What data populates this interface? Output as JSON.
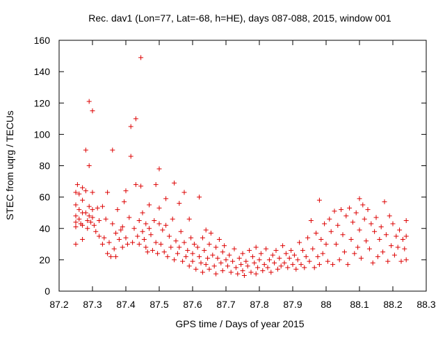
{
  "chart_data": {
    "type": "scatter",
    "title": "Rec. dav1 (Lon=77, Lat=-68, h=HE), days 087-088, 2015, window 001",
    "xlabel": "GPS time / Days of year 2015",
    "ylabel": "STEC from uqrg / TECUs",
    "xlim": [
      87.2,
      88.3
    ],
    "ylim": [
      0,
      160
    ],
    "xticks": [
      87.2,
      87.3,
      87.4,
      87.5,
      87.6,
      87.7,
      87.8,
      87.9,
      88,
      88.1,
      88.2,
      88.3
    ],
    "xtick_labels": [
      "87.2",
      "87.3",
      "87.4",
      "87.5",
      "87.6",
      "87.7",
      "87.8",
      "87.9",
      "88",
      "88.1",
      "88.2",
      "88.3"
    ],
    "yticks": [
      0,
      20,
      40,
      60,
      80,
      100,
      120,
      140,
      160
    ],
    "ytick_labels": [
      "0",
      "20",
      "40",
      "60",
      "80",
      "100",
      "120",
      "140",
      "160"
    ],
    "marker": "plus",
    "color": "#dd0000",
    "grid": false,
    "legend": "none",
    "points": [
      [
        87.25,
        63
      ],
      [
        87.25,
        55
      ],
      [
        87.25,
        48
      ],
      [
        87.25,
        44
      ],
      [
        87.25,
        41
      ],
      [
        87.25,
        30
      ],
      [
        87.255,
        68
      ],
      [
        87.26,
        62
      ],
      [
        87.26,
        52
      ],
      [
        87.26,
        46
      ],
      [
        87.265,
        43
      ],
      [
        87.27,
        66
      ],
      [
        87.27,
        58
      ],
      [
        87.27,
        50
      ],
      [
        87.27,
        42
      ],
      [
        87.27,
        33
      ],
      [
        87.28,
        90
      ],
      [
        87.28,
        64
      ],
      [
        87.28,
        50
      ],
      [
        87.285,
        45
      ],
      [
        87.285,
        40
      ],
      [
        87.29,
        121
      ],
      [
        87.29,
        80
      ],
      [
        87.29,
        54
      ],
      [
        87.29,
        48
      ],
      [
        87.295,
        44
      ],
      [
        87.3,
        115
      ],
      [
        87.3,
        63
      ],
      [
        87.3,
        52
      ],
      [
        87.3,
        47
      ],
      [
        87.305,
        42
      ],
      [
        87.31,
        38
      ],
      [
        87.315,
        53
      ],
      [
        87.32,
        45
      ],
      [
        87.32,
        35
      ],
      [
        87.33,
        54
      ],
      [
        87.33,
        30
      ],
      [
        87.335,
        34
      ],
      [
        87.34,
        46
      ],
      [
        87.345,
        63
      ],
      [
        87.345,
        24
      ],
      [
        87.35,
        31
      ],
      [
        87.355,
        22
      ],
      [
        87.36,
        90
      ],
      [
        87.36,
        43
      ],
      [
        87.365,
        27
      ],
      [
        87.37,
        37
      ],
      [
        87.37,
        22
      ],
      [
        87.375,
        52
      ],
      [
        87.38,
        33
      ],
      [
        87.385,
        39
      ],
      [
        87.39,
        41
      ],
      [
        87.39,
        28
      ],
      [
        87.395,
        57
      ],
      [
        87.4,
        64
      ],
      [
        87.4,
        34
      ],
      [
        87.405,
        30
      ],
      [
        87.41,
        47
      ],
      [
        87.415,
        105
      ],
      [
        87.415,
        86
      ],
      [
        87.42,
        31
      ],
      [
        87.425,
        40
      ],
      [
        87.43,
        110
      ],
      [
        87.43,
        68
      ],
      [
        87.435,
        35
      ],
      [
        87.44,
        45
      ],
      [
        87.44,
        30
      ],
      [
        87.445,
        149
      ],
      [
        87.445,
        67
      ],
      [
        87.45,
        50
      ],
      [
        87.45,
        38
      ],
      [
        87.455,
        33
      ],
      [
        87.46,
        43
      ],
      [
        87.46,
        28
      ],
      [
        87.465,
        25
      ],
      [
        87.47,
        55
      ],
      [
        87.47,
        40
      ],
      [
        87.475,
        36
      ],
      [
        87.48,
        26
      ],
      [
        87.485,
        45
      ],
      [
        87.49,
        68
      ],
      [
        87.49,
        31
      ],
      [
        87.495,
        24
      ],
      [
        87.5,
        78
      ],
      [
        87.5,
        53
      ],
      [
        87.5,
        43
      ],
      [
        87.505,
        30
      ],
      [
        87.51,
        39
      ],
      [
        87.515,
        25
      ],
      [
        87.52,
        59
      ],
      [
        87.52,
        42
      ],
      [
        87.525,
        22
      ],
      [
        87.53,
        35
      ],
      [
        87.535,
        28
      ],
      [
        87.54,
        46
      ],
      [
        87.545,
        69
      ],
      [
        87.545,
        20
      ],
      [
        87.55,
        32
      ],
      [
        87.555,
        24
      ],
      [
        87.56,
        56
      ],
      [
        87.56,
        28
      ],
      [
        87.565,
        38
      ],
      [
        87.57,
        19
      ],
      [
        87.575,
        63
      ],
      [
        87.575,
        31
      ],
      [
        87.58,
        22
      ],
      [
        87.585,
        26
      ],
      [
        87.59,
        46
      ],
      [
        87.59,
        16
      ],
      [
        87.595,
        34
      ],
      [
        87.6,
        24
      ],
      [
        87.6,
        19
      ],
      [
        87.605,
        30
      ],
      [
        87.61,
        14
      ],
      [
        87.615,
        28
      ],
      [
        87.62,
        22
      ],
      [
        87.62,
        60
      ],
      [
        87.625,
        18
      ],
      [
        87.63,
        34
      ],
      [
        87.63,
        12
      ],
      [
        87.635,
        26
      ],
      [
        87.64,
        39
      ],
      [
        87.64,
        17
      ],
      [
        87.645,
        21
      ],
      [
        87.65,
        30
      ],
      [
        87.65,
        14
      ],
      [
        87.655,
        37
      ],
      [
        87.66,
        23
      ],
      [
        87.665,
        16
      ],
      [
        87.67,
        28
      ],
      [
        87.67,
        11
      ],
      [
        87.675,
        21
      ],
      [
        87.68,
        33
      ],
      [
        87.685,
        18
      ],
      [
        87.69,
        25
      ],
      [
        87.69,
        13
      ],
      [
        87.695,
        29
      ],
      [
        87.7,
        20
      ],
      [
        87.705,
        16
      ],
      [
        87.71,
        23
      ],
      [
        87.715,
        12
      ],
      [
        87.72,
        19
      ],
      [
        87.725,
        27
      ],
      [
        87.73,
        15
      ],
      [
        87.735,
        11
      ],
      [
        87.74,
        21
      ],
      [
        87.745,
        17
      ],
      [
        87.75,
        24
      ],
      [
        87.75,
        13
      ],
      [
        87.755,
        10
      ],
      [
        87.76,
        19
      ],
      [
        87.765,
        16
      ],
      [
        87.77,
        26
      ],
      [
        87.775,
        12
      ],
      [
        87.78,
        22
      ],
      [
        87.785,
        18
      ],
      [
        87.79,
        28
      ],
      [
        87.79,
        11
      ],
      [
        87.795,
        15
      ],
      [
        87.8,
        20
      ],
      [
        87.805,
        24
      ],
      [
        87.81,
        13
      ],
      [
        87.815,
        17
      ],
      [
        87.82,
        27
      ],
      [
        87.825,
        15
      ],
      [
        87.83,
        20
      ],
      [
        87.835,
        12
      ],
      [
        87.84,
        23
      ],
      [
        87.845,
        18
      ],
      [
        87.85,
        26
      ],
      [
        87.855,
        14
      ],
      [
        87.86,
        21
      ],
      [
        87.865,
        16
      ],
      [
        87.87,
        29
      ],
      [
        87.875,
        18
      ],
      [
        87.88,
        24
      ],
      [
        87.885,
        15
      ],
      [
        87.89,
        21
      ],
      [
        87.895,
        26
      ],
      [
        87.9,
        17
      ],
      [
        87.905,
        23
      ],
      [
        87.91,
        14
      ],
      [
        87.915,
        20
      ],
      [
        87.92,
        31
      ],
      [
        87.925,
        17
      ],
      [
        87.93,
        26
      ],
      [
        87.935,
        15
      ],
      [
        87.94,
        22
      ],
      [
        87.945,
        34
      ],
      [
        87.95,
        19
      ],
      [
        87.955,
        45
      ],
      [
        87.96,
        27
      ],
      [
        87.965,
        15
      ],
      [
        87.97,
        37
      ],
      [
        87.975,
        22
      ],
      [
        87.98,
        58
      ],
      [
        87.98,
        17
      ],
      [
        87.985,
        33
      ],
      [
        87.99,
        24
      ],
      [
        87.995,
        43
      ],
      [
        88,
        30
      ],
      [
        88.005,
        19
      ],
      [
        88.01,
        46
      ],
      [
        88.015,
        38
      ],
      [
        88.02,
        17
      ],
      [
        88.025,
        51
      ],
      [
        88.03,
        30
      ],
      [
        88.035,
        42
      ],
      [
        88.04,
        20
      ],
      [
        88.045,
        52
      ],
      [
        88.05,
        36
      ],
      [
        88.055,
        25
      ],
      [
        88.06,
        48
      ],
      [
        88.065,
        17
      ],
      [
        88.07,
        53
      ],
      [
        88.075,
        33
      ],
      [
        88.08,
        44
      ],
      [
        88.085,
        24
      ],
      [
        88.09,
        50
      ],
      [
        88.095,
        28
      ],
      [
        88.1,
        59
      ],
      [
        88.1,
        39
      ],
      [
        88.105,
        21
      ],
      [
        88.11,
        55
      ],
      [
        88.115,
        46
      ],
      [
        88.12,
        32
      ],
      [
        88.125,
        52
      ],
      [
        88.13,
        27
      ],
      [
        88.135,
        43
      ],
      [
        88.14,
        18
      ],
      [
        88.145,
        38
      ],
      [
        88.15,
        47
      ],
      [
        88.155,
        22
      ],
      [
        88.16,
        33
      ],
      [
        88.165,
        41
      ],
      [
        88.17,
        25
      ],
      [
        88.175,
        57
      ],
      [
        88.18,
        36
      ],
      [
        88.185,
        19
      ],
      [
        88.19,
        48
      ],
      [
        88.195,
        29
      ],
      [
        88.2,
        43
      ],
      [
        88.205,
        23
      ],
      [
        88.21,
        35
      ],
      [
        88.215,
        28
      ],
      [
        88.22,
        39
      ],
      [
        88.225,
        19
      ],
      [
        88.23,
        33
      ],
      [
        88.235,
        27
      ],
      [
        88.24,
        45
      ],
      [
        88.24,
        20
      ],
      [
        88.24,
        35
      ]
    ]
  }
}
